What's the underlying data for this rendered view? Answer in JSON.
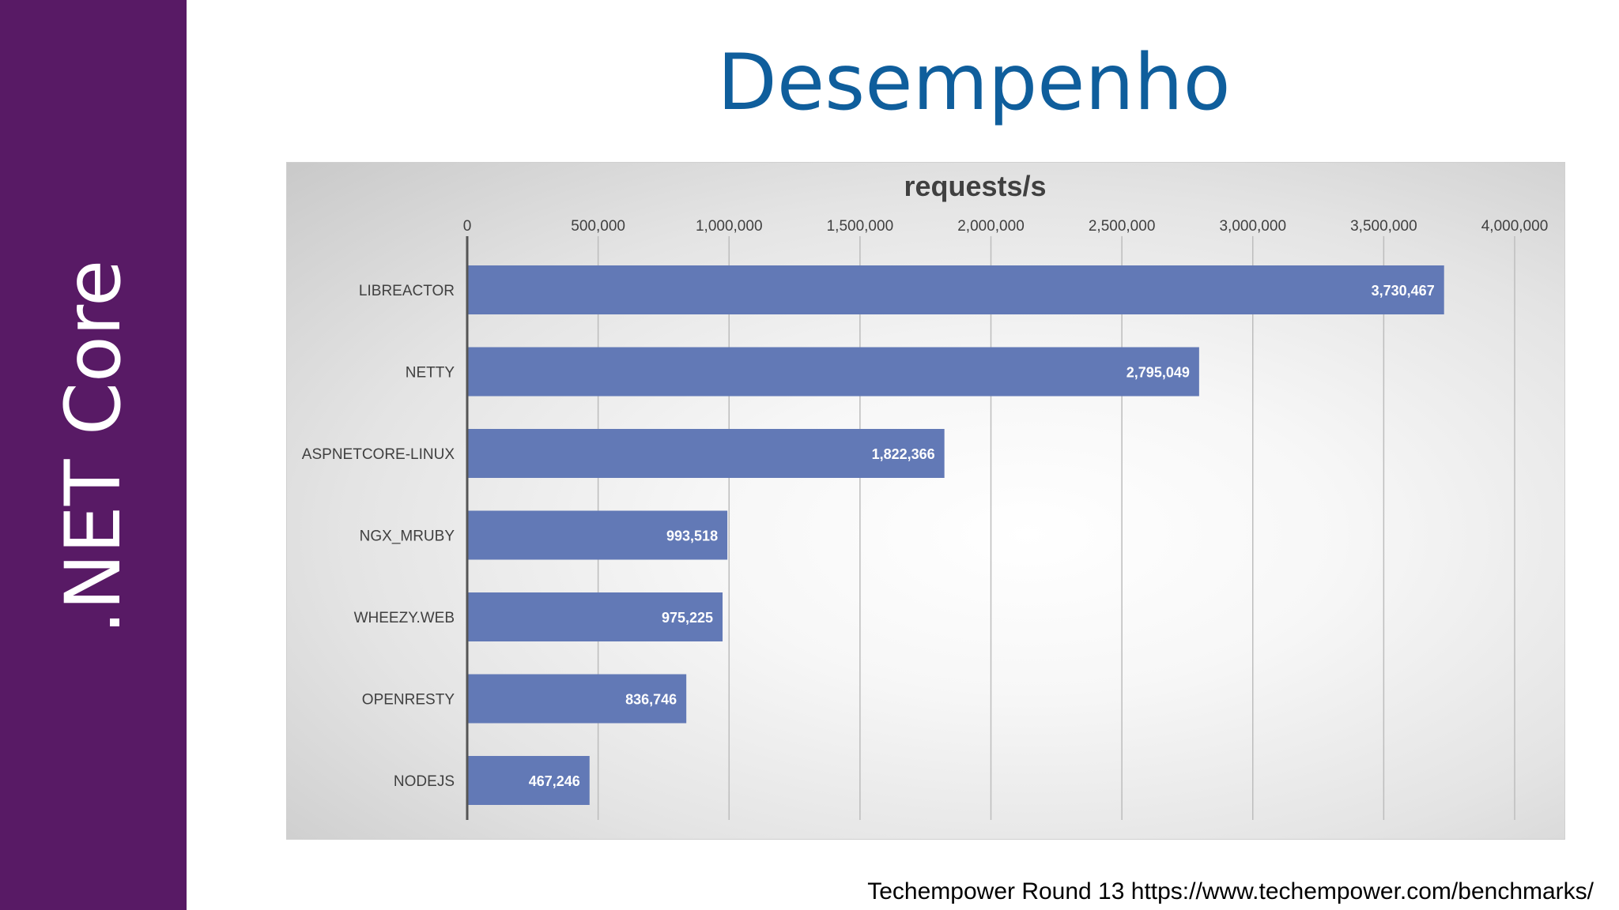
{
  "sidebar": {
    "label": ".NET Core"
  },
  "slide": {
    "title": "Desempenho",
    "footnote": "Techempower Round 13 https://www.techempower.com/benchmarks/"
  },
  "colors": {
    "sidebar": "#581a65",
    "title": "#0f5e9c",
    "bar": "#6279b6",
    "bar_label": "#ffffff",
    "grid": "#bdbdbd",
    "axis": "#555555",
    "text": "#404040"
  },
  "chart_data": {
    "type": "bar",
    "orientation": "horizontal",
    "title": "requests/s",
    "categories": [
      "LIBREACTOR",
      "NETTY",
      "ASPNETCORE-LINUX",
      "NGX_MRUBY",
      "WHEEZY.WEB",
      "OPENRESTY",
      "NODEJS"
    ],
    "values": [
      3730467,
      2795049,
      1822366,
      993518,
      975225,
      836746,
      467246
    ],
    "value_labels": [
      "3,730,467",
      "2,795,049",
      "1,822,366",
      "993,518",
      "975,225",
      "836,746",
      "467,246"
    ],
    "xlim": [
      0,
      4000000
    ],
    "x_ticks": [
      0,
      500000,
      1000000,
      1500000,
      2000000,
      2500000,
      3000000,
      3500000,
      4000000
    ],
    "x_tick_labels": [
      "0",
      "500,000",
      "1,000,000",
      "1,500,000",
      "2,000,000",
      "2,500,000",
      "3,000,000",
      "3,500,000",
      "4,000,000"
    ],
    "x_axis_position": "top",
    "grid": true,
    "legend": "none"
  }
}
